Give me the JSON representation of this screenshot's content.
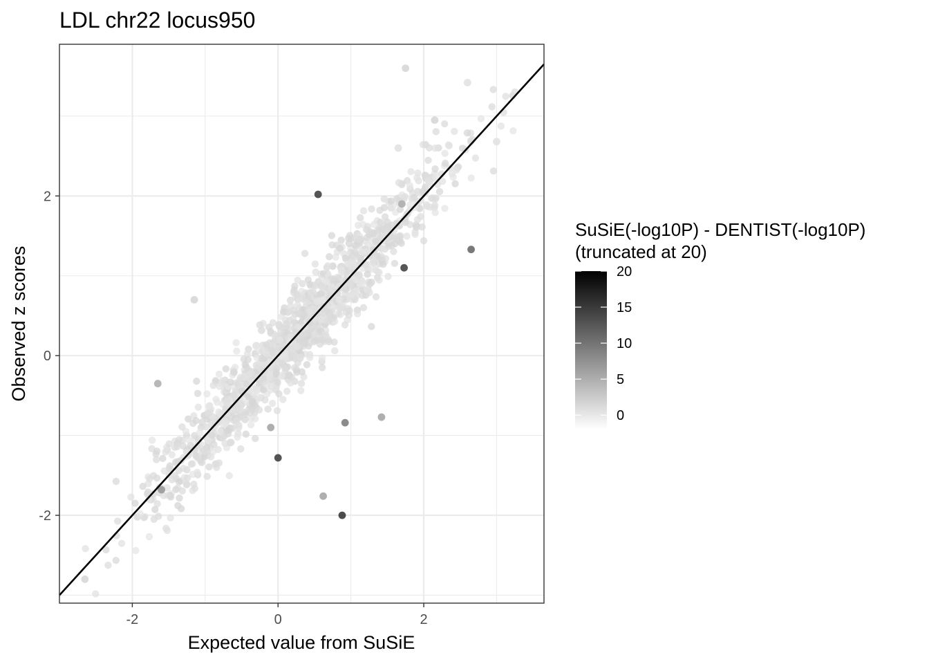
{
  "chart_data": {
    "type": "scatter",
    "title": "LDL chr22 locus950",
    "xlabel": "Expected value from SuSiE",
    "ylabel": "Observed z scores",
    "xlim": [
      -3.0,
      3.65
    ],
    "ylim": [
      -3.1,
      3.9
    ],
    "x_ticks": [
      -2,
      0,
      2
    ],
    "x_tick_labels": [
      "-2",
      "0",
      "2"
    ],
    "y_ticks": [
      -2,
      0,
      2
    ],
    "y_tick_labels": [
      "-2",
      "0",
      "2"
    ],
    "grid": true,
    "reference_line": {
      "slope": 1,
      "intercept": 0,
      "color": "#000000"
    },
    "legend": {
      "position": "right",
      "title_lines": [
        "SuSiE(-log10P) - DENTIST(-log10P)",
        "(truncated at 20)"
      ],
      "min": -2,
      "max": 20,
      "ticks": [
        0,
        5,
        10,
        15,
        20
      ],
      "tick_labels": [
        "0",
        "5",
        "10",
        "15",
        "20"
      ],
      "low_color": "#ffffff",
      "high_color": "#000000"
    },
    "point_cloud": {
      "n": 1400,
      "x_range": [
        -2.7,
        3.3
      ],
      "noise_sd": 0.26,
      "color_value": 1
    },
    "highlighted_points": [
      {
        "x": 0.55,
        "y": 2.02,
        "c": 17
      },
      {
        "x": 2.65,
        "y": 1.33,
        "c": 13
      },
      {
        "x": 1.73,
        "y": 1.1,
        "c": 17
      },
      {
        "x": 0.0,
        "y": -1.28,
        "c": 17
      },
      {
        "x": 0.88,
        "y": -2.0,
        "c": 18
      },
      {
        "x": 0.92,
        "y": -0.84,
        "c": 11
      },
      {
        "x": 1.42,
        "y": -0.77,
        "c": 7
      },
      {
        "x": 0.62,
        "y": -1.76,
        "c": 7
      },
      {
        "x": -1.65,
        "y": -0.35,
        "c": 6
      },
      {
        "x": 1.75,
        "y": 3.6,
        "c": 2
      },
      {
        "x": 3.25,
        "y": 3.3,
        "c": 1
      },
      {
        "x": 2.15,
        "y": 2.95,
        "c": 2
      },
      {
        "x": 2.6,
        "y": 3.42,
        "c": 1
      },
      {
        "x": 3.0,
        "y": 2.68,
        "c": 1
      },
      {
        "x": -2.65,
        "y": -2.8,
        "c": 2
      },
      {
        "x": -1.15,
        "y": 0.7,
        "c": 2
      },
      {
        "x": -1.6,
        "y": -1.68,
        "c": 8
      },
      {
        "x": -0.1,
        "y": -0.9,
        "c": 7
      },
      {
        "x": 1.7,
        "y": 1.9,
        "c": 6
      },
      {
        "x": 1.65,
        "y": 2.6,
        "c": 1
      }
    ]
  }
}
